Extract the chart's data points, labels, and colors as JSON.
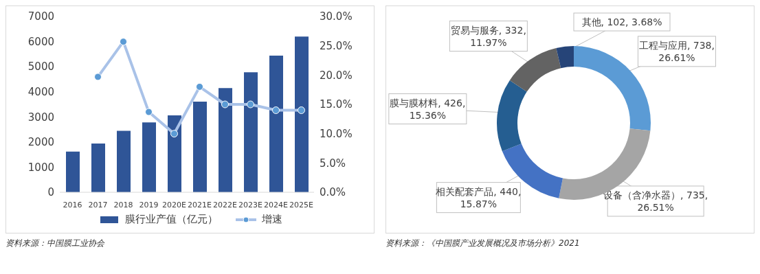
{
  "chart_data": [
    {
      "type": "bar",
      "categories": [
        "2016",
        "2017",
        "2018",
        "2019",
        "2020E",
        "2021E",
        "2022E",
        "2023E",
        "2024E",
        "2025E"
      ],
      "series": [
        {
          "name": "膜行业产值（亿元）",
          "type": "bar",
          "color": "#2f5597",
          "values": [
            1620,
            1940,
            2450,
            2780,
            3060,
            3610,
            4150,
            4780,
            5440,
            6200
          ]
        },
        {
          "name": "增速",
          "type": "line",
          "axis": "y2",
          "color": "#a9c2e8",
          "values": [
            null,
            19.7,
            25.7,
            13.7,
            10.0,
            18.0,
            15.0,
            15.0,
            14.0,
            14.0
          ]
        }
      ],
      "ylim": [
        0,
        7000
      ],
      "yticks": [
        0,
        1000,
        2000,
        3000,
        4000,
        5000,
        6000,
        7000
      ],
      "y2lim": [
        0,
        30
      ],
      "y2ticks": [
        {
          "value": 0,
          "label": "0.0%"
        },
        {
          "value": 5,
          "label": "5.0%"
        },
        {
          "value": 10,
          "label": "10.0%"
        },
        {
          "value": 15,
          "label": "15.0%"
        },
        {
          "value": 20,
          "label": "20.0%"
        },
        {
          "value": 25,
          "label": "25.0%"
        },
        {
          "value": 30,
          "label": "30.0%"
        }
      ],
      "marker": "circle",
      "legend": "bottom",
      "grid": false,
      "annotations": [
        "资料来源：中国膜工业协会"
      ]
    },
    {
      "type": "donut",
      "categories": [
        "工程与应用",
        "设备（含净水器）",
        "相关配套产品",
        "膜与膜材料",
        "贸易与服务",
        "其他"
      ],
      "values": [
        738,
        735,
        440,
        426,
        332,
        102
      ],
      "colors": [
        "#5b9bd5",
        "#a5a5a5",
        "#4472c4",
        "#255e91",
        "#636363",
        "#264478"
      ],
      "value_labels": [
        "738, 26.61%",
        "735, 26.51%",
        "440, 15.87%",
        "426, 15.36%",
        "332, 11.97%",
        "102, 3.68%"
      ],
      "annotations": [
        "资料来源：《中国膜产业发展概况及市场分析》2021"
      ]
    }
  ]
}
